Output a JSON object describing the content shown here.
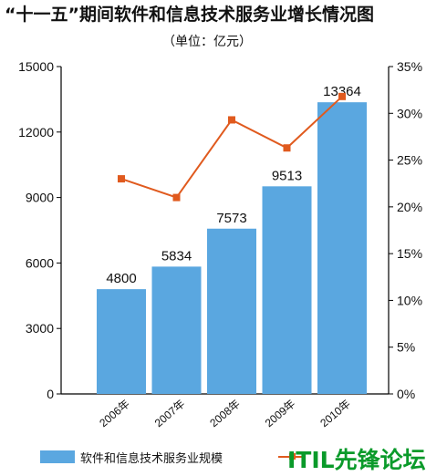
{
  "chart_data": {
    "type": "bar",
    "title": "“十一五”期间软件和信息技术服务业增长情况图",
    "subtitle": "（单位：亿元）",
    "categories": [
      "2006年",
      "2007年",
      "2008年",
      "2009年",
      "2010年"
    ],
    "series": [
      {
        "name": "软件和信息技术服务业规模",
        "type": "bar",
        "axis": "left",
        "color": "#5aa7e0",
        "values": [
          4800,
          5834,
          7573,
          9513,
          13364
        ],
        "labels": [
          "4800",
          "5834",
          "7573",
          "9513",
          "13364"
        ]
      },
      {
        "name": "",
        "type": "line",
        "axis": "right",
        "color": "#e05a1e",
        "values": [
          23,
          21,
          29.3,
          26.3,
          31.8
        ]
      }
    ],
    "y_left": {
      "ylim": [
        0,
        15000
      ],
      "ticks": [
        "0",
        "3000",
        "6000",
        "9000",
        "12000",
        "15000"
      ]
    },
    "y_right": {
      "ylim": [
        0,
        35
      ],
      "ticks": [
        "0%",
        "5%",
        "10%",
        "15%",
        "20%",
        "25%",
        "30%",
        "35%"
      ]
    },
    "legend": {
      "position": "bottom",
      "bar_label": "软件和信息技术服务业规模",
      "line_label": ""
    },
    "grid": false
  },
  "watermark": "ITIL先锋论坛"
}
